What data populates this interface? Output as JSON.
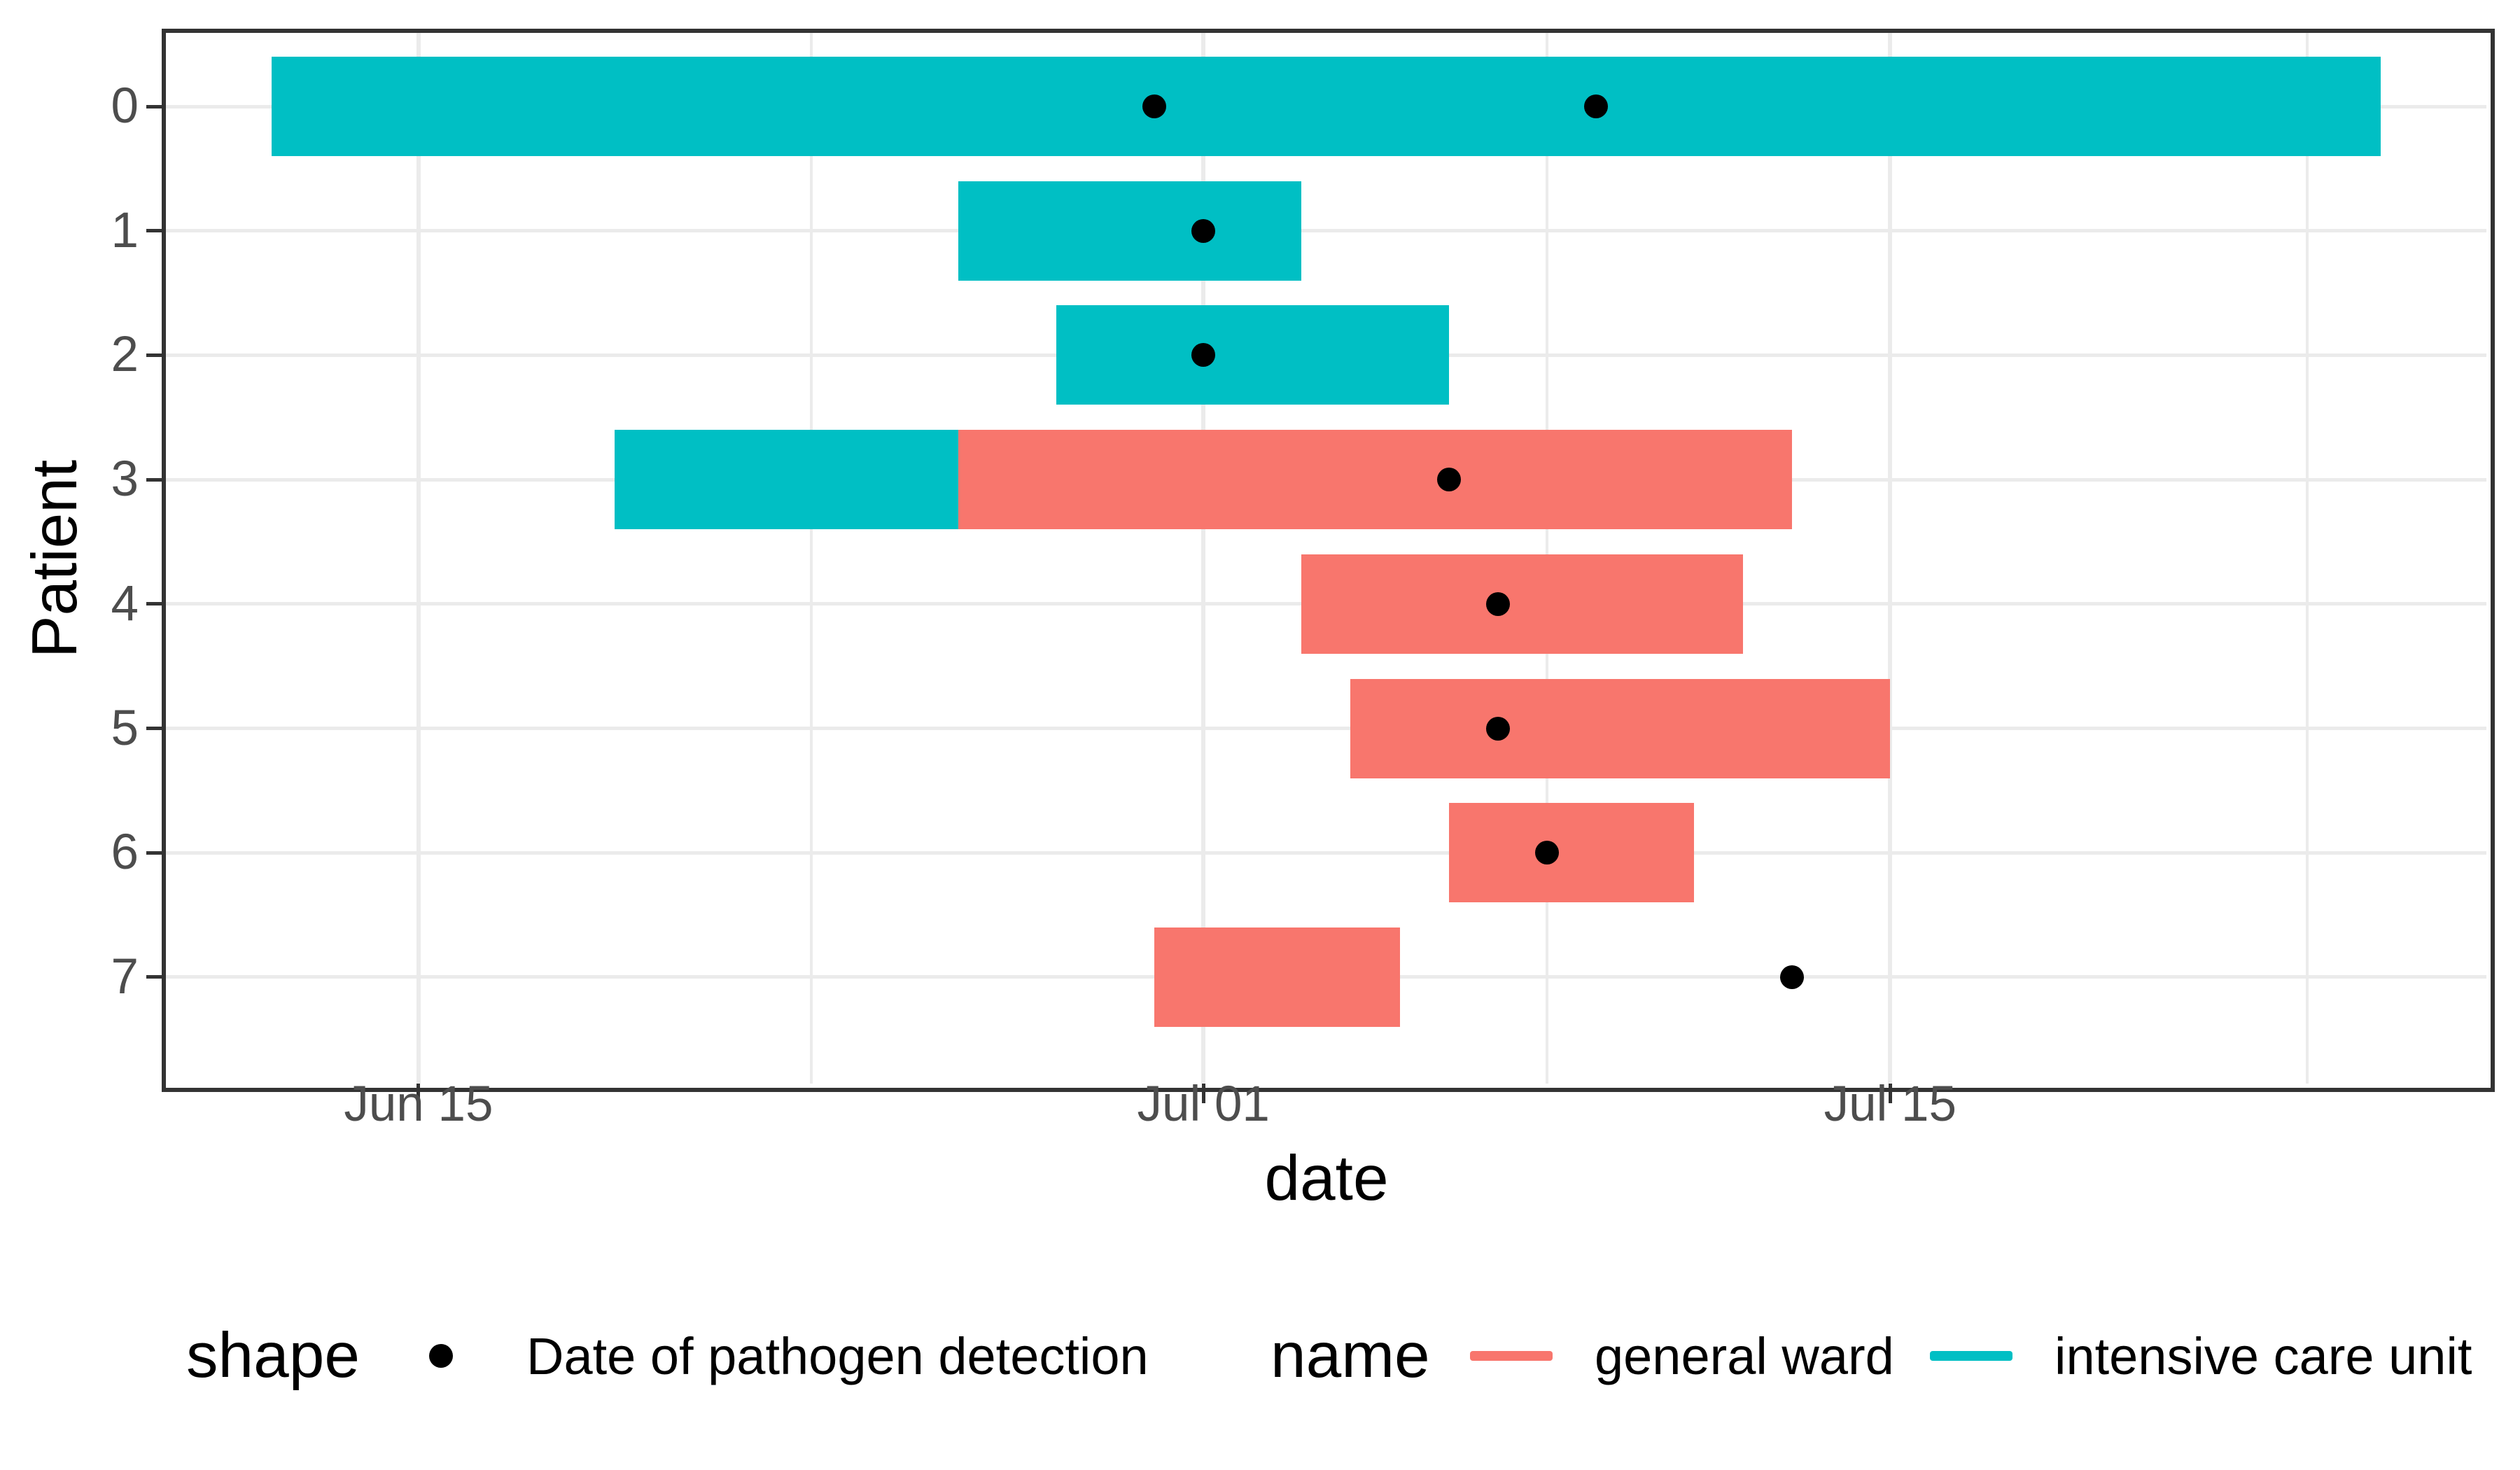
{
  "chart_data": {
    "type": "gantt",
    "xlabel": "date",
    "ylabel": "Patient",
    "x_ticks": [
      "Jun 15",
      "Jul 01",
      "Jul 15"
    ],
    "x_minor_gridline_days_from_jun1": [
      23,
      38,
      53.5
    ],
    "y_ticks": [
      "0",
      "1",
      "2",
      "3",
      "4",
      "5",
      "6",
      "7"
    ],
    "axis_range": {
      "x_min": "Jun 10",
      "x_max": "Jul 27"
    },
    "grid": "major-and-minor-x, major-y, light grey on white, dark panel border",
    "legend_position": "bottom",
    "legend": {
      "shape_title": "shape",
      "shape_label": "Date of pathogen detection",
      "name_title": "name",
      "items": [
        {
          "label": "general ward",
          "color": "#F8766D"
        },
        {
          "label": "intensive care unit",
          "color": "#00BFC4"
        }
      ]
    },
    "colors": {
      "general_ward": "#F8766D",
      "intensive_care_unit": "#00BFC4",
      "detection_dot": "#000000",
      "gridline": "#EBEBEB",
      "panel_border": "#333333",
      "axis_text": "#4D4D4D"
    },
    "patients": [
      {
        "patient": "0",
        "stays": [
          {
            "ward": "intensive care unit",
            "start": "Jun 12",
            "end": "Jul 25"
          }
        ],
        "detections": [
          "Jun 30",
          "Jul 09"
        ]
      },
      {
        "patient": "1",
        "stays": [
          {
            "ward": "intensive care unit",
            "start": "Jun 26",
            "end": "Jul 03"
          }
        ],
        "detections": [
          "Jul 01"
        ]
      },
      {
        "patient": "2",
        "stays": [
          {
            "ward": "intensive care unit",
            "start": "Jun 28",
            "end": "Jul 06"
          }
        ],
        "detections": [
          "Jul 01"
        ]
      },
      {
        "patient": "3",
        "stays": [
          {
            "ward": "intensive care unit",
            "start": "Jun 19",
            "end": "Jun 26"
          },
          {
            "ward": "general ward",
            "start": "Jun 26",
            "end": "Jul 13"
          }
        ],
        "detections": [
          "Jul 06"
        ]
      },
      {
        "patient": "4",
        "stays": [
          {
            "ward": "general ward",
            "start": "Jul 03",
            "end": "Jul 12"
          }
        ],
        "detections": [
          "Jul 07"
        ]
      },
      {
        "patient": "5",
        "stays": [
          {
            "ward": "general ward",
            "start": "Jul 04",
            "end": "Jul 15"
          }
        ],
        "detections": [
          "Jul 07"
        ]
      },
      {
        "patient": "6",
        "stays": [
          {
            "ward": "general ward",
            "start": "Jul 06",
            "end": "Jul 11"
          }
        ],
        "detections": [
          "Jul 08"
        ]
      },
      {
        "patient": "7",
        "stays": [
          {
            "ward": "general ward",
            "start": "Jun 30",
            "end": "Jul 05"
          }
        ],
        "detections": [
          "Jul 13"
        ]
      }
    ]
  }
}
